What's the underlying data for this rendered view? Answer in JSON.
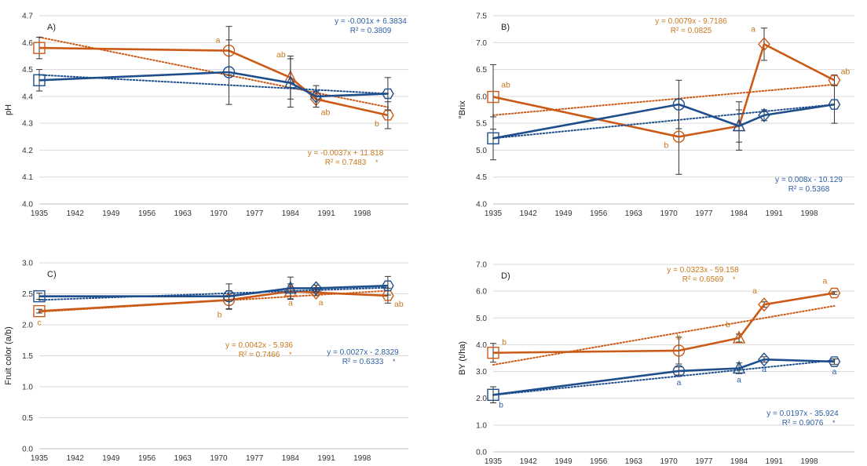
{
  "colors": {
    "blue": "#1f4e8c",
    "orange": "#cc5a17",
    "eq_blue": "#2e5fa3",
    "eq_orange": "#c8781c",
    "grid": "#d9d9d9",
    "axis": "#404040"
  },
  "chart_data": [
    {
      "type": "line",
      "panel_label": "A)",
      "ylabel": "pH",
      "ylim": [
        4.0,
        4.7
      ],
      "yticks": [
        "4.0",
        "4.1",
        "4.2",
        "4.3",
        "4.4",
        "4.5",
        "4.6",
        "4.7"
      ],
      "xlim": [
        1935,
        2007
      ],
      "xticks": [
        "1935",
        "1942",
        "1949",
        "1956",
        "1963",
        "1970",
        "1977",
        "1984",
        "1991",
        "1998"
      ],
      "grid": true,
      "series": [
        {
          "color": "orange",
          "x": [
            1935,
            1972,
            1984,
            1989,
            2003
          ],
          "y": [
            4.58,
            4.57,
            4.47,
            4.39,
            4.33
          ],
          "err": [
            0.04,
            0.09,
            0.08,
            0.03,
            0.05
          ],
          "markers": [
            "square",
            "circle",
            "triangle",
            "diamond",
            "hexagon"
          ],
          "labels": [
            "",
            "a",
            "ab",
            "ab",
            "b"
          ],
          "trend": [
            4.62,
            4.36
          ],
          "equation": "y = -0.0037x + 11.818",
          "r2": "R² = 0.7483",
          "sig": "*"
        },
        {
          "color": "blue",
          "x": [
            1935,
            1972,
            1984,
            1989,
            2003
          ],
          "y": [
            4.46,
            4.49,
            4.45,
            4.4,
            4.41
          ],
          "err": [
            0.04,
            0.12,
            0.09,
            0.04,
            0.06
          ],
          "markers": [
            "square",
            "circle",
            "triangle",
            "diamond",
            "hexagon"
          ],
          "labels": [
            "",
            "",
            "",
            "",
            ""
          ],
          "trend": [
            4.48,
            4.41
          ],
          "equation": "y = -0.001x + 6.3834",
          "r2": "R² = 0.3809",
          "sig": ""
        }
      ]
    },
    {
      "type": "line",
      "panel_label": "B)",
      "ylabel": "°Brix",
      "ylim": [
        4.0,
        7.5
      ],
      "yticks": [
        "4.0",
        "4.5",
        "5.0",
        "5.5",
        "6.0",
        "6.5",
        "7.0",
        "7.5"
      ],
      "xlim": [
        1935,
        2007
      ],
      "xticks": [
        "1935",
        "1942",
        "1949",
        "1956",
        "1963",
        "1970",
        "1977",
        "1984",
        "1991",
        "1998"
      ],
      "grid": true,
      "series": [
        {
          "color": "orange",
          "x": [
            1935,
            1972,
            1984,
            1989,
            2003
          ],
          "y": [
            5.99,
            5.25,
            5.45,
            6.97,
            6.3
          ],
          "err": [
            0.6,
            0.7,
            0.45,
            0.3,
            0.1
          ],
          "markers": [
            "square",
            "circle",
            "triangle",
            "diamond",
            "hexagon"
          ],
          "labels": [
            "ab",
            "b",
            "",
            "a",
            "ab"
          ],
          "trend": [
            5.65,
            6.22
          ],
          "equation": "y = 0.0079x - 9.7186",
          "r2": "R² = 0.0825",
          "sig": ""
        },
        {
          "color": "blue",
          "x": [
            1935,
            1972,
            1984,
            1989,
            2003
          ],
          "y": [
            5.22,
            5.85,
            5.45,
            5.65,
            5.85
          ],
          "err": [
            0.4,
            0.45,
            0.3,
            0.1,
            0.35
          ],
          "markers": [
            "square",
            "circle",
            "triangle",
            "diamond",
            "hexagon"
          ],
          "labels": [
            "",
            "",
            "",
            "",
            ""
          ],
          "trend": [
            5.22,
            5.85
          ],
          "equation": "y = 0.008x - 10.129",
          "r2": "R² = 0.5368",
          "sig": ""
        }
      ]
    },
    {
      "type": "line",
      "panel_label": "C)",
      "ylabel": "Fruit color (a/b)",
      "ylim": [
        0.0,
        3.0
      ],
      "yticks": [
        "0.0",
        "0.5",
        "1.0",
        "1.5",
        "2.0",
        "2.5",
        "3.0"
      ],
      "xlim": [
        1935,
        2007
      ],
      "xticks": [
        "1935",
        "1942",
        "1949",
        "1956",
        "1963",
        "1970",
        "1977",
        "1984",
        "1991",
        "1998"
      ],
      "grid": true,
      "series": [
        {
          "color": "orange",
          "x": [
            1935,
            1972,
            1984,
            1989,
            2003
          ],
          "y": [
            2.22,
            2.4,
            2.54,
            2.52,
            2.47
          ],
          "err": [
            0.03,
            0.15,
            0.12,
            0.05,
            0.12
          ],
          "markers": [
            "square",
            "circle",
            "triangle",
            "diamond",
            "hexagon"
          ],
          "labels": [
            "c",
            "b",
            "a",
            "a",
            "ab"
          ],
          "trend": [
            2.21,
            2.55
          ],
          "equation": "y = 0.0042x - 5.936",
          "r2": "R² = 0.7466",
          "sig": "*"
        },
        {
          "color": "blue",
          "x": [
            1935,
            1972,
            1984,
            1989,
            2003
          ],
          "y": [
            2.46,
            2.46,
            2.59,
            2.59,
            2.63
          ],
          "err": [
            0.05,
            0.2,
            0.18,
            0.05,
            0.15
          ],
          "markers": [
            "square",
            "circle",
            "triangle",
            "diamond",
            "hexagon"
          ],
          "labels": [
            "",
            "",
            "",
            "",
            ""
          ],
          "trend": [
            2.4,
            2.6
          ],
          "equation": "y = 0.0027x - 2.8329",
          "r2": "R² = 0.6333",
          "sig": "*"
        }
      ]
    },
    {
      "type": "line",
      "panel_label": "D)",
      "ylabel": "BY (t/ha)",
      "ylim": [
        0.0,
        7.0
      ],
      "yticks": [
        "0.0",
        "1.0",
        "2.0",
        "3.0",
        "4.0",
        "5.0",
        "6.0",
        "7.0"
      ],
      "xlim": [
        1935,
        2007
      ],
      "xticks": [
        "1935",
        "1942",
        "1949",
        "1956",
        "1963",
        "1970",
        "1977",
        "1984",
        "1991",
        "1998"
      ],
      "grid": true,
      "series": [
        {
          "color": "orange",
          "x": [
            1935,
            1972,
            1984,
            1989,
            2003
          ],
          "y": [
            3.7,
            3.78,
            4.25,
            5.5,
            5.93
          ],
          "err": [
            0.35,
            0.5,
            0.15,
            0.1,
            0.05
          ],
          "markers": [
            "square",
            "circle",
            "triangle",
            "diamond",
            "hexagon"
          ],
          "labels": [
            "b",
            "b",
            "b",
            "a",
            "a"
          ],
          "trend": [
            3.25,
            5.45
          ],
          "equation": "y = 0.0323x - 59.158",
          "r2": "R² = 0.6569",
          "sig": "*"
        },
        {
          "color": "blue",
          "x": [
            1935,
            1972,
            1984,
            1989,
            2003
          ],
          "y": [
            2.13,
            3.02,
            3.12,
            3.45,
            3.37
          ],
          "err": [
            0.3,
            0.15,
            0.2,
            0.1,
            0.1
          ],
          "markers": [
            "square",
            "circle",
            "triangle",
            "diamond",
            "hexagon"
          ],
          "labels": [
            "b",
            "a",
            "a",
            "a",
            "a"
          ],
          "trend": [
            2.12,
            3.42
          ],
          "equation": "y = 0.0197x - 35.924",
          "r2": "R² = 0.9076",
          "sig": "*"
        }
      ]
    }
  ]
}
